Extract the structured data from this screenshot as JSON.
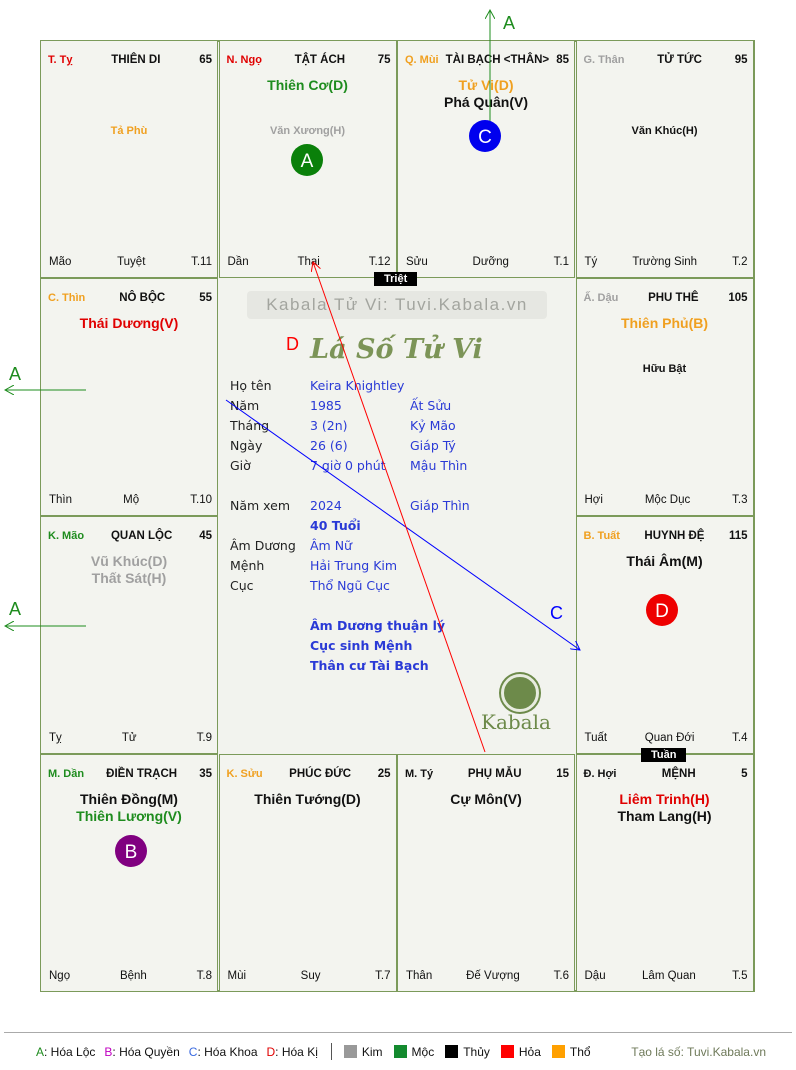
{
  "cells": [
    {
      "row": 0,
      "col": 0,
      "can": "T. Tỵ",
      "can_color": "#e00000",
      "palace": "THIÊN DI",
      "num": "65",
      "mains": [],
      "minors": [
        {
          "t": "Tả Phù",
          "c": "#f0a020"
        }
      ],
      "foot": [
        "Mão",
        "Tuyệt",
        "T.11"
      ]
    },
    {
      "row": 0,
      "col": 1,
      "can": "N. Ngọ",
      "can_color": "#e00000",
      "palace": "TẬT ÁCH",
      "num": "75",
      "mains": [
        {
          "t": "Thiên Cơ(D)",
          "c": "#1e8c1e"
        }
      ],
      "minors": [
        {
          "t": "Văn Xương(H)",
          "c": "#a0a0a0"
        }
      ],
      "foot": [
        "Dần",
        "Thai",
        "T.12"
      ]
    },
    {
      "row": 0,
      "col": 2,
      "can": "Q. Mùi",
      "can_color": "#f0a020",
      "palace": "TÀI BẠCH <THÂN>",
      "num": "85",
      "mains": [
        {
          "t": "Tử Vi(D)",
          "c": "#f0a020"
        },
        {
          "t": "Phá Quân(V)",
          "c": "#111"
        }
      ],
      "minors": [],
      "foot": [
        "Sửu",
        "Dưỡng",
        "T.1"
      ]
    },
    {
      "row": 0,
      "col": 3,
      "can": "G. Thân",
      "can_color": "#a0a0a0",
      "palace": "TỬ TỨC",
      "num": "95",
      "mains": [],
      "minors": [
        {
          "t": "Văn Khúc(H)",
          "c": "#111"
        }
      ],
      "foot": [
        "Tý",
        "Trường Sinh",
        "T.2"
      ]
    },
    {
      "row": 1,
      "col": 0,
      "can": "C. Thìn",
      "can_color": "#f0a020",
      "palace": "NÔ BỘC",
      "num": "55",
      "mains": [
        {
          "t": "Thái Dương(V)",
          "c": "#e00000"
        }
      ],
      "minors": [],
      "foot": [
        "Thìn",
        "Mộ",
        "T.10"
      ]
    },
    {
      "row": 1,
      "col": 3,
      "can": "Ấ. Dậu",
      "can_color": "#a0a0a0",
      "palace": "PHU THÊ",
      "num": "105",
      "mains": [
        {
          "t": "Thiên Phủ(B)",
          "c": "#f0a020"
        }
      ],
      "minors": [
        {
          "t": "Hữu Bật",
          "c": "#111"
        }
      ],
      "foot": [
        "Hợi",
        "Mộc Dục",
        "T.3"
      ]
    },
    {
      "row": 2,
      "col": 0,
      "can": "K. Mão",
      "can_color": "#1e8c1e",
      "palace": "QUAN LỘC",
      "num": "45",
      "mains": [
        {
          "t": "Vũ Khúc(D)",
          "c": "#a0a0a0"
        },
        {
          "t": "Thất Sát(H)",
          "c": "#a0a0a0"
        }
      ],
      "minors": [],
      "foot": [
        "Tỵ",
        "Tử",
        "T.9"
      ]
    },
    {
      "row": 2,
      "col": 3,
      "can": "B. Tuất",
      "can_color": "#f0a020",
      "palace": "HUYNH ĐỆ",
      "num": "115",
      "mains": [
        {
          "t": "Thái Âm(M)",
          "c": "#111"
        }
      ],
      "minors": [],
      "foot": [
        "Tuất",
        "Quan Đới",
        "T.4"
      ]
    },
    {
      "row": 3,
      "col": 0,
      "can": "M. Dần",
      "can_color": "#1e8c1e",
      "palace": "ĐIỀN TRẠCH",
      "num": "35",
      "mains": [
        {
          "t": "Thiên Đồng(M)",
          "c": "#111"
        },
        {
          "t": "Thiên Lương(V)",
          "c": "#1e8c1e"
        }
      ],
      "minors": [],
      "foot": [
        "Ngọ",
        "Bệnh",
        "T.8"
      ]
    },
    {
      "row": 3,
      "col": 1,
      "can": "K. Sửu",
      "can_color": "#f0a020",
      "palace": "PHÚC ĐỨC",
      "num": "25",
      "mains": [
        {
          "t": "Thiên Tướng(D)",
          "c": "#111"
        }
      ],
      "minors": [],
      "foot": [
        "Mùi",
        "Suy",
        "T.7"
      ]
    },
    {
      "row": 3,
      "col": 2,
      "can": "M. Tý",
      "can_color": "#111",
      "palace": "PHỤ MẪU",
      "num": "15",
      "mains": [
        {
          "t": "Cự Môn(V)",
          "c": "#111"
        }
      ],
      "minors": [],
      "foot": [
        "Thân",
        "Đế Vượng",
        "T.6"
      ]
    },
    {
      "row": 3,
      "col": 3,
      "can": "Đ. Hợi",
      "can_color": "#111",
      "palace": "MỆNH",
      "num": "5",
      "mains": [
        {
          "t": "Liêm Trinh(H)",
          "c": "#e00000"
        },
        {
          "t": "Tham Lang(H)",
          "c": "#111"
        }
      ],
      "minors": [],
      "foot": [
        "Dậu",
        "Lâm Quan",
        "T.5"
      ]
    }
  ],
  "center": {
    "watermark": "Kabala Tử Vi: Tuvi.Kabala.vn",
    "title": "Lá Số Tử Vi",
    "rows": [
      {
        "label": "Họ tên",
        "v1": "Keira Knightley",
        "v2": ""
      },
      {
        "label": "Năm",
        "v1": "1985",
        "v2": "Ất Sửu"
      },
      {
        "label": "Tháng",
        "v1": "3  (2n)",
        "v2": "Kỷ Mão"
      },
      {
        "label": "Ngày",
        "v1": "26  (6)",
        "v2": "Giáp Tý"
      },
      {
        "label": "Giờ",
        "v1": "7 giờ 0 phút",
        "v2": "Mậu Thìn"
      },
      {
        "label": "Năm xem",
        "v1": "2024",
        "v2": "Giáp Thìn"
      },
      {
        "label": "",
        "v1": "40 Tuổi",
        "v2": ""
      },
      {
        "label": "Âm Dương",
        "v1": "Âm Nữ",
        "v2": ""
      },
      {
        "label": "Mệnh",
        "v1": "Hải Trung Kim",
        "v2": ""
      },
      {
        "label": "Cục",
        "v1": "Thổ Ngũ Cục",
        "v2": ""
      }
    ],
    "notes": [
      "Âm Dương thuận lý",
      "Cục sinh Mệnh",
      "Thân cư Tài Bạch"
    ],
    "logo_text": "Kabala"
  },
  "tags": {
    "triet": "Triệt",
    "tuan": "Tuần"
  },
  "annotations": {
    "a": "A",
    "b": "B",
    "c": "C",
    "d": "D"
  },
  "legend": {
    "hoa": [
      {
        "k": "A",
        "t": ": Hóa Lộc",
        "c": "#1e8c1e"
      },
      {
        "k": "B",
        "t": ": Hóa Quyền",
        "c": "#c000c0"
      },
      {
        "k": "C",
        "t": ": Hóa Khoa",
        "c": "#3a6ae0"
      },
      {
        "k": "D",
        "t": ": Hóa Kị",
        "c": "#e00000"
      }
    ],
    "elements": [
      {
        "t": "Kim",
        "c": "#999999"
      },
      {
        "t": "Mộc",
        "c": "#138a2e"
      },
      {
        "t": "Thủy",
        "c": "#000000"
      },
      {
        "t": "Hỏa",
        "c": "#ff0000"
      },
      {
        "t": "Thổ",
        "c": "#ffa000"
      }
    ],
    "credit": "Tạo lá số: Tuvi.Kabala.vn"
  }
}
